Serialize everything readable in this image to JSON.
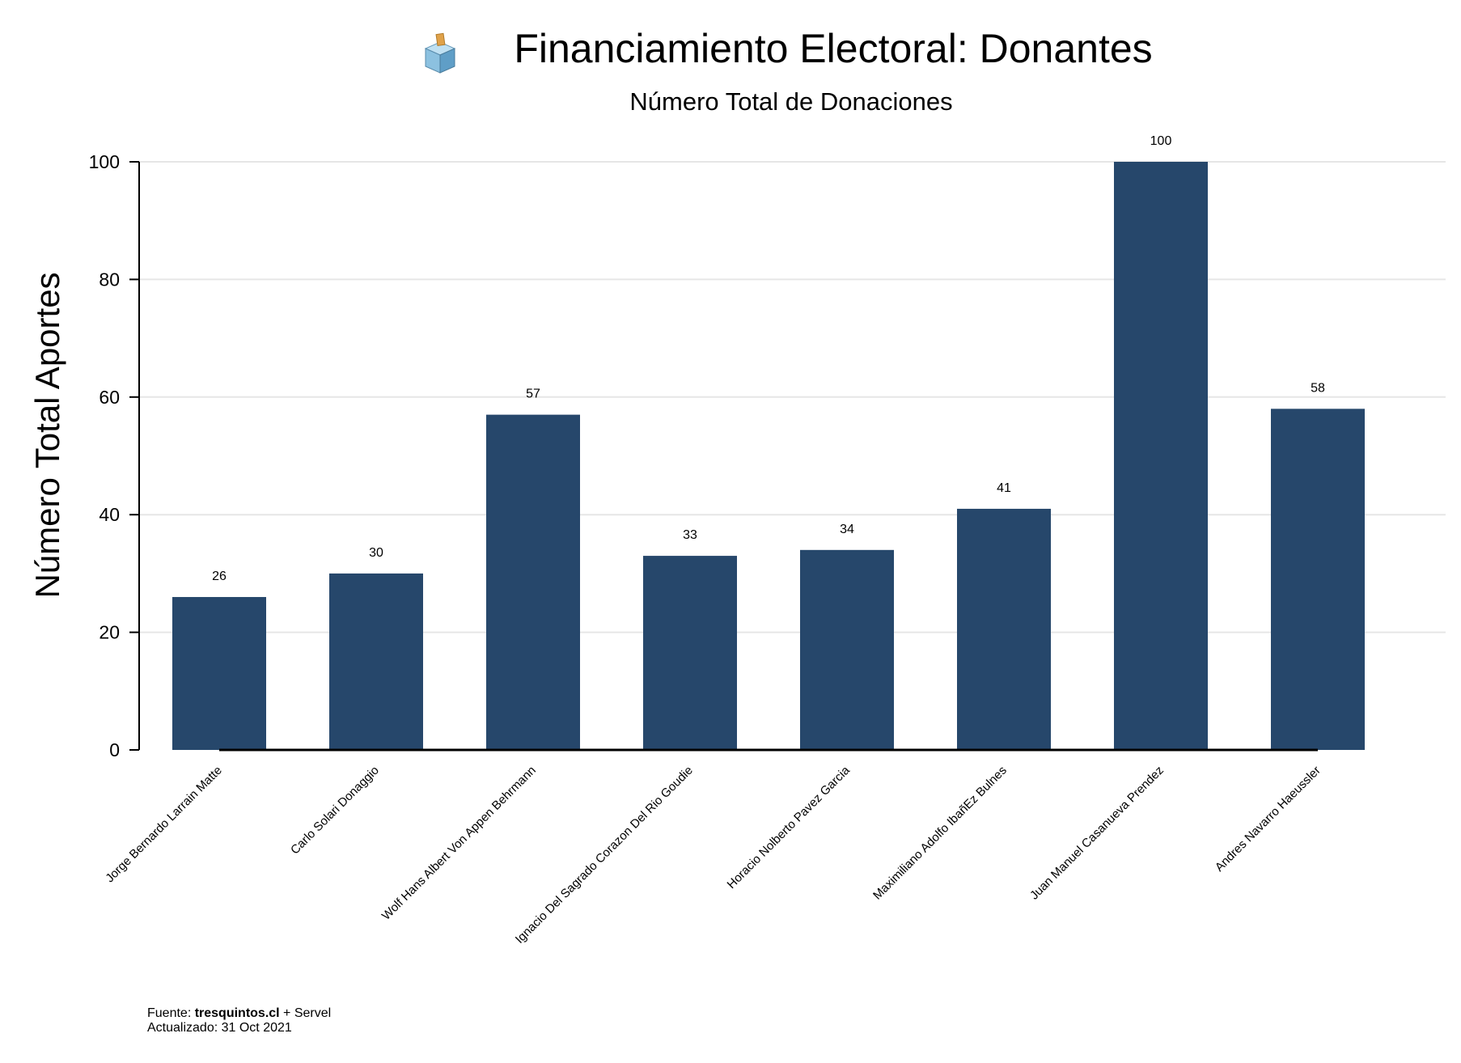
{
  "title": {
    "icon": "ballot-box-icon",
    "text": "Financiamiento Electoral: Donantes",
    "subtitle": "Número Total de Donaciones"
  },
  "footer": {
    "source_prefix": "Fuente: ",
    "source_site": "tresquintos.cl",
    "source_suffix": " + Servel",
    "updated": "Actualizado: 31 Oct 2021"
  },
  "colors": {
    "bar": "#26476b",
    "grid": "#e6e6e6",
    "axis": "#000000"
  },
  "chart_data": {
    "type": "bar",
    "title": "Financiamiento Electoral: Donantes",
    "subtitle": "Número Total de Donaciones",
    "xlabel": "",
    "ylabel": "Número Total Aportes",
    "ylim": [
      0,
      100
    ],
    "yticks": [
      0,
      20,
      40,
      60,
      80,
      100
    ],
    "grid": true,
    "categories": [
      "Jorge Bernardo Larrain Matte",
      "Carlo Solari Donaggio",
      "Wolf Hans Albert Von Appen Behrmann",
      "Ignacio Del Sagrado Corazon Del Rio Goudie",
      "Horacio Nolberto Pavez Garcia",
      "Maximiliano Adolfo IbañEz Bulnes",
      "Juan Manuel Casanueva Prendez",
      "Andres Navarro Haeussler"
    ],
    "values": [
      26,
      30,
      57,
      33,
      34,
      41,
      100,
      58
    ],
    "data_labels": [
      "26",
      "30",
      "57",
      "33",
      "34",
      "41",
      "100",
      "58"
    ]
  }
}
